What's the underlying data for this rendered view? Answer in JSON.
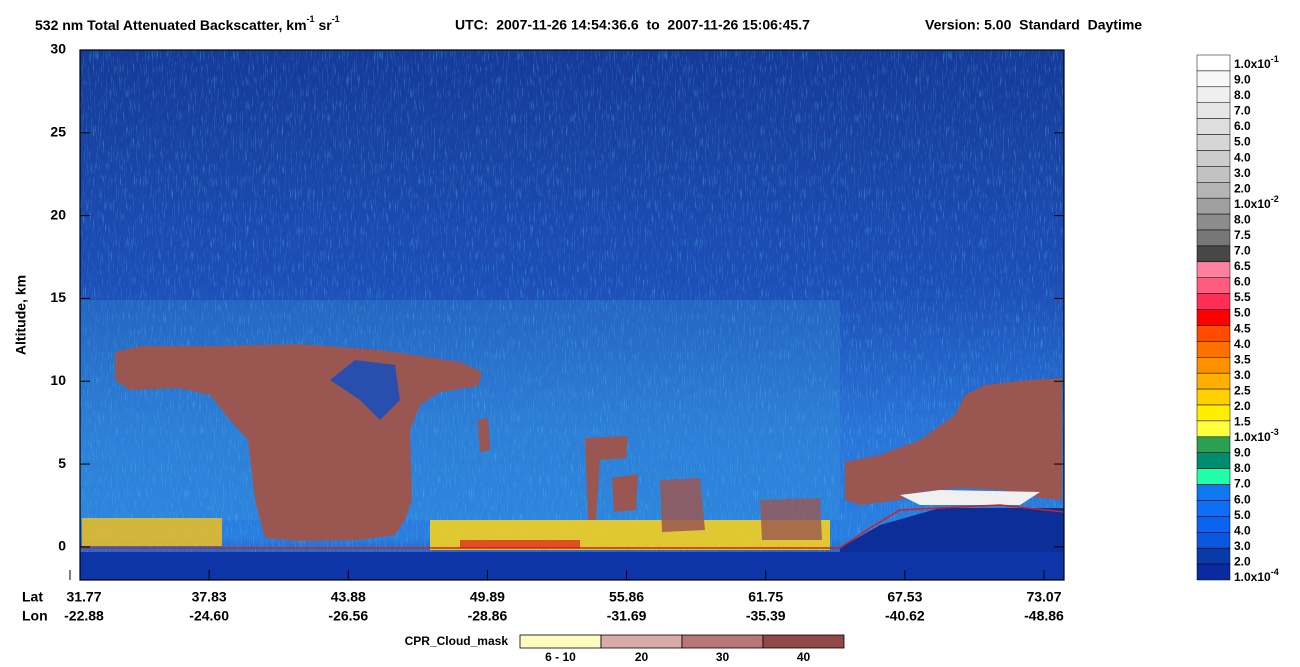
{
  "chart_data": {
    "type": "curtain",
    "title": [
      "532 nm Total Attenuated Backscatter, km",
      "-1",
      " sr",
      "-1"
    ],
    "time_range": "UTC:  2007-11-26 14:54:36.6  to  2007-11-26 15:06:45.7",
    "version": "Version: 5.00  Standard  Daytime",
    "y_label": "Altitude, km",
    "ylim": [
      -2,
      30
    ],
    "yticks": [
      0,
      5,
      10,
      15,
      20,
      25,
      30
    ],
    "x_row_labels": [
      "Lat",
      "Lon"
    ],
    "lat": [
      "31.77",
      "37.83",
      "43.88",
      "49.89",
      "55.86",
      "61.75",
      "67.53",
      "73.07"
    ],
    "lon": [
      "-22.88",
      "-24.60",
      "-26.56",
      "-28.86",
      "-31.69",
      "-35.39",
      "-40.62",
      "-48.86"
    ],
    "colorbar": {
      "levels": [
        {
          "label": "1.0x10",
          "exp": "-1"
        },
        {
          "label": "9.0"
        },
        {
          "label": "8.0"
        },
        {
          "label": "7.0"
        },
        {
          "label": "6.0"
        },
        {
          "label": "5.0"
        },
        {
          "label": "4.0"
        },
        {
          "label": "3.0"
        },
        {
          "label": "2.0"
        },
        {
          "label": "1.0x10",
          "exp": "-2"
        },
        {
          "label": "8.0"
        },
        {
          "label": "7.5"
        },
        {
          "label": "7.0"
        },
        {
          "label": "6.5"
        },
        {
          "label": "6.0"
        },
        {
          "label": "5.5"
        },
        {
          "label": "5.0"
        },
        {
          "label": "4.5"
        },
        {
          "label": "4.0"
        },
        {
          "label": "3.5"
        },
        {
          "label": "3.0"
        },
        {
          "label": "2.5"
        },
        {
          "label": "2.0"
        },
        {
          "label": "1.5"
        },
        {
          "label": "1.0x10",
          "exp": "-3"
        },
        {
          "label": "9.0"
        },
        {
          "label": "8.0"
        },
        {
          "label": "7.0"
        },
        {
          "label": "6.0"
        },
        {
          "label": "5.0"
        },
        {
          "label": "4.0"
        },
        {
          "label": "3.0"
        },
        {
          "label": "2.0"
        },
        {
          "label": "1.0x10",
          "exp": "-4"
        }
      ],
      "colors": [
        "#ffffff",
        "#f7f7f7",
        "#efefef",
        "#e6e6e6",
        "#dedede",
        "#d6d6d6",
        "#cccccc",
        "#c2c2c2",
        "#b4b4b4",
        "#a0a0a0",
        "#8c8c8c",
        "#777777",
        "#474747",
        "#ff80a0",
        "#ff5c80",
        "#ff2e55",
        "#ff0000",
        "#ff4a00",
        "#ff7000",
        "#ff9000",
        "#ffb000",
        "#ffd000",
        "#ffee00",
        "#ffff40",
        "#2aa050",
        "#008c70",
        "#20ffa8",
        "#0e78f0",
        "#0c6ff5",
        "#0a64f0",
        "#0858e0",
        "#0a3aa8",
        "#0a2aa0"
      ]
    },
    "cpr_mask": {
      "label": "CPR_Cloud_mask",
      "categories": [
        "6 - 10",
        "20",
        "30",
        "40"
      ],
      "colors": [
        "#fffcc0",
        "#d8aaa8",
        "#b87676",
        "#904848"
      ]
    }
  }
}
